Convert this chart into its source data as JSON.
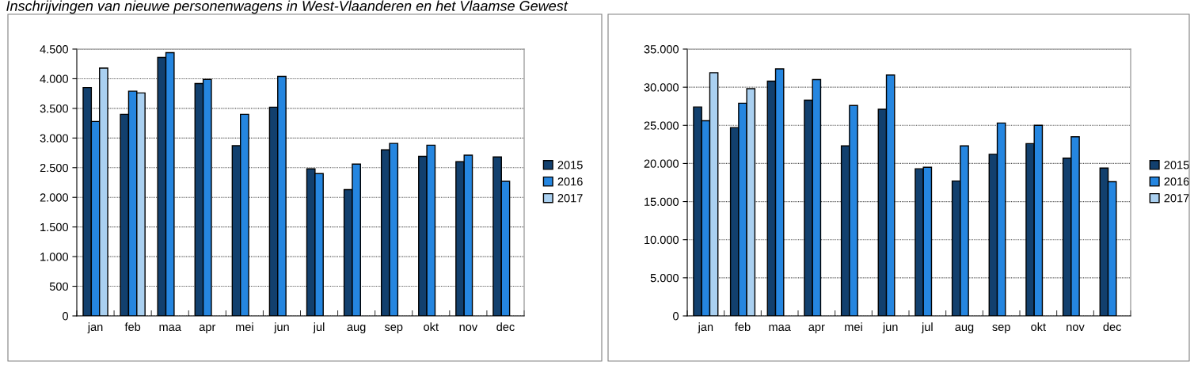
{
  "chart_data": [
    {
      "type": "bar",
      "title": "Inschrijvingen van nieuwe personenwagens in West-Vlaanderen en het Vlaamse Gewest",
      "categories": [
        "jan",
        "feb",
        "maa",
        "apr",
        "mei",
        "jun",
        "jul",
        "aug",
        "sep",
        "okt",
        "nov",
        "dec"
      ],
      "series": [
        {
          "name": "2015",
          "color": "#12406e",
          "values": [
            3850,
            3400,
            4360,
            3920,
            2870,
            3520,
            2480,
            2130,
            2800,
            2690,
            2600,
            2680
          ]
        },
        {
          "name": "2016",
          "color": "#2586e0",
          "values": [
            3280,
            3790,
            4440,
            3990,
            3400,
            4040,
            2400,
            2560,
            2910,
            2880,
            2710,
            2270
          ]
        },
        {
          "name": "2017",
          "color": "#aad0f0",
          "values": [
            4180,
            3760,
            null,
            null,
            null,
            null,
            null,
            null,
            null,
            null,
            null,
            null
          ]
        }
      ],
      "ylim": [
        0,
        4500
      ],
      "yticks": [
        {
          "value": 0,
          "label": "0"
        },
        {
          "value": 500,
          "label": "500"
        },
        {
          "value": 1000,
          "label": "1.000"
        },
        {
          "value": 1500,
          "label": "1.500"
        },
        {
          "value": 2000,
          "label": "2.000"
        },
        {
          "value": 2500,
          "label": "2.500"
        },
        {
          "value": 3000,
          "label": "3.000"
        },
        {
          "value": 3500,
          "label": "3.500"
        },
        {
          "value": 4000,
          "label": "4.000"
        },
        {
          "value": 4500,
          "label": "4.500"
        }
      ],
      "grid": "y",
      "legend": "right"
    },
    {
      "type": "bar",
      "categories": [
        "jan",
        "feb",
        "maa",
        "apr",
        "mei",
        "jun",
        "jul",
        "aug",
        "sep",
        "okt",
        "nov",
        "dec"
      ],
      "series": [
        {
          "name": "2015",
          "color": "#12406e",
          "values": [
            27400,
            24700,
            30800,
            28300,
            22300,
            27100,
            19300,
            17700,
            21200,
            22600,
            20700,
            19400
          ]
        },
        {
          "name": "2016",
          "color": "#2586e0",
          "values": [
            25600,
            27900,
            32400,
            31000,
            27600,
            31600,
            19500,
            22300,
            25300,
            25000,
            23500,
            17600
          ]
        },
        {
          "name": "2017",
          "color": "#aad0f0",
          "values": [
            31900,
            29800,
            null,
            null,
            null,
            null,
            null,
            null,
            null,
            null,
            null,
            null
          ]
        }
      ],
      "ylim": [
        0,
        35000
      ],
      "yticks": [
        {
          "value": 0,
          "label": "0"
        },
        {
          "value": 5000,
          "label": "5.000"
        },
        {
          "value": 10000,
          "label": "10.000"
        },
        {
          "value": 15000,
          "label": "15.000"
        },
        {
          "value": 20000,
          "label": "20.000"
        },
        {
          "value": 25000,
          "label": "25.000"
        },
        {
          "value": 30000,
          "label": "30.000"
        },
        {
          "value": 35000,
          "label": "35.000"
        }
      ],
      "grid": "y",
      "legend": "right"
    }
  ]
}
